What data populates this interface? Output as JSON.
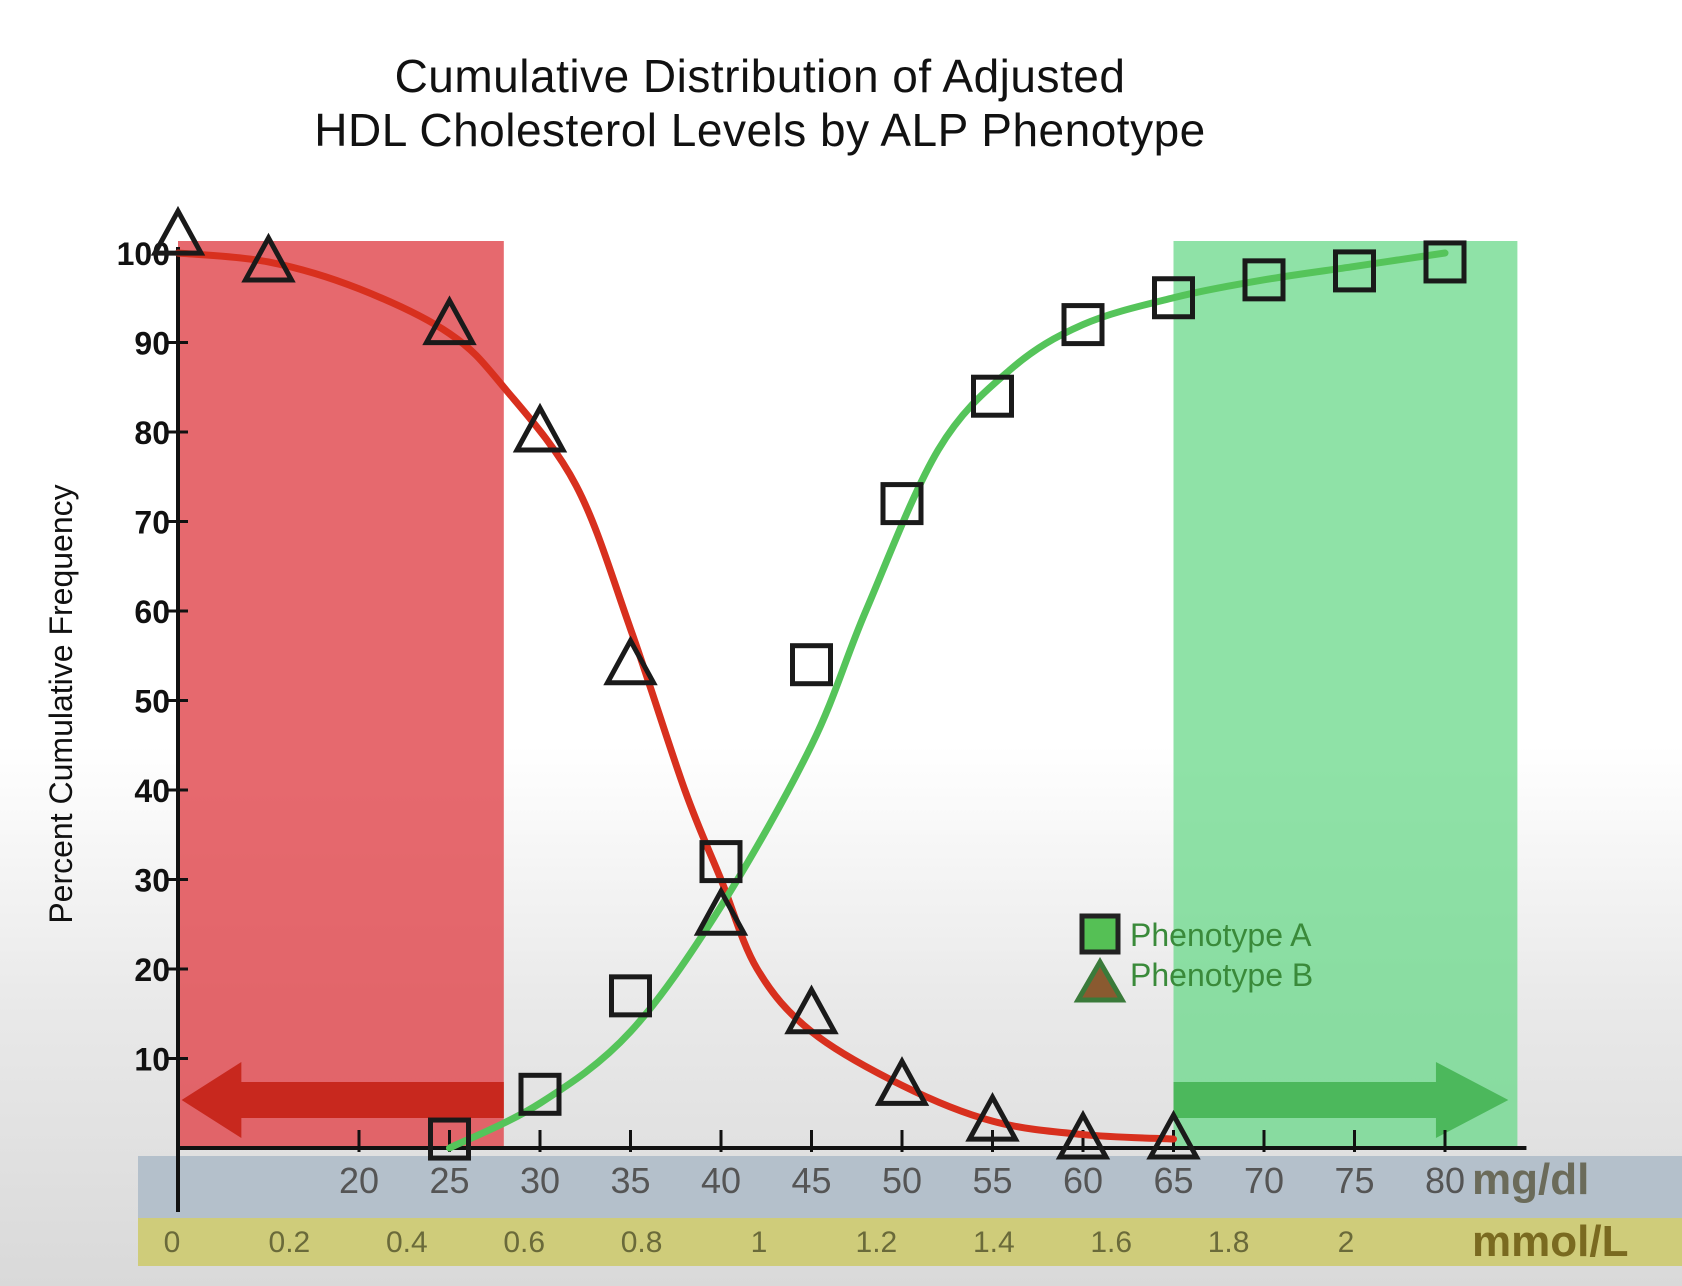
{
  "chart_data": {
    "type": "line",
    "title": [
      "Cumulative Distribution of Adjusted",
      "HDL Cholesterol Levels by ALP Phenotype"
    ],
    "ylabel": "Percent Cumulative Frequency",
    "ylim": [
      0,
      100
    ],
    "yticks": [
      "10",
      "20",
      "30",
      "40",
      "50",
      "60",
      "70",
      "80",
      "90",
      "100"
    ],
    "xlim": [
      10,
      80
    ],
    "xticks_mgdl": [
      "20",
      "25",
      "30",
      "35",
      "40",
      "45",
      "50",
      "55",
      "60",
      "65",
      "70",
      "75",
      "80"
    ],
    "xunit_mgdl": "mg/dl",
    "xticks_mmol": [
      "0",
      "0.2",
      "0.4",
      "0.6",
      "0.8",
      "1",
      "1.2",
      "1.4",
      "1.6",
      "1.8",
      "2"
    ],
    "xunit_mmol": "mmol/L",
    "series": [
      {
        "name": "Phenotype A",
        "marker": "square",
        "color": "#5cc05c",
        "points": [
          [
            25,
            1
          ],
          [
            30,
            6
          ],
          [
            35,
            17
          ],
          [
            40,
            32
          ],
          [
            45,
            54
          ],
          [
            50,
            72
          ],
          [
            55,
            84
          ],
          [
            60,
            92
          ],
          [
            65,
            95
          ],
          [
            70,
            97
          ],
          [
            75,
            98
          ],
          [
            80,
            99
          ]
        ]
      },
      {
        "name": "Phenotype B",
        "marker": "triangle",
        "color": "#d93a2a",
        "points": [
          [
            10,
            102
          ],
          [
            15,
            99
          ],
          [
            25,
            92
          ],
          [
            30,
            80
          ],
          [
            35,
            54
          ],
          [
            40,
            26
          ],
          [
            45,
            15
          ],
          [
            50,
            7
          ],
          [
            55,
            3
          ],
          [
            60,
            1
          ],
          [
            65,
            1
          ]
        ]
      }
    ],
    "curve_A": [
      [
        25,
        0
      ],
      [
        30,
        5
      ],
      [
        35,
        13
      ],
      [
        40,
        27
      ],
      [
        45,
        45
      ],
      [
        48,
        60
      ],
      [
        52,
        78
      ],
      [
        56,
        87
      ],
      [
        60,
        92
      ],
      [
        65,
        95
      ],
      [
        70,
        97
      ],
      [
        75,
        98.5
      ],
      [
        80,
        100
      ]
    ],
    "curve_B": [
      [
        10,
        100
      ],
      [
        15,
        99
      ],
      [
        20,
        96
      ],
      [
        25,
        91
      ],
      [
        28,
        85
      ],
      [
        32,
        74
      ],
      [
        35,
        58
      ],
      [
        38,
        40
      ],
      [
        40,
        30
      ],
      [
        42,
        20
      ],
      [
        45,
        13
      ],
      [
        50,
        7
      ],
      [
        55,
        3
      ],
      [
        60,
        1.5
      ],
      [
        65,
        1
      ]
    ],
    "regions": [
      {
        "name": "low-hdl-region",
        "x": [
          10,
          28
        ],
        "color": "#e0484e"
      },
      {
        "name": "high-hdl-region",
        "x": [
          65,
          84
        ],
        "color": "#6ad88a"
      }
    ],
    "legend_position": "bottom-right"
  }
}
